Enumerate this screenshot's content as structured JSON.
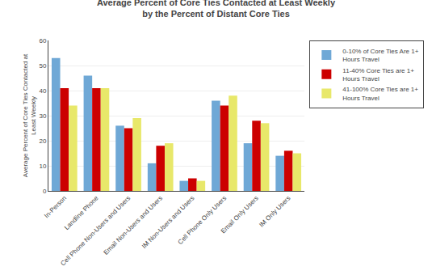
{
  "chart_data": {
    "type": "bar",
    "title": "Average Percent of Core Ties Contacted at Least Weekly\nby the Percent of Distant Core Ties",
    "y_label": "Average Percent of Core Ties Contacted at\nLeast Weekly",
    "categories": [
      "In-Person",
      "Landline Phone",
      "Cell Phone Non-Users and Users",
      "Email Non-Users and Users",
      "IM Non-Users and Users",
      "Cell Phone Only Users",
      "Email Only Users",
      "IM Only Users"
    ],
    "series": [
      {
        "name": "0-10% of Core Ties Are 1+\nHours Travel",
        "color": "#6FA8D6",
        "values": [
          53,
          46,
          26,
          11,
          4,
          36,
          19,
          14
        ]
      },
      {
        "name": "11-40% Core Ties are 1+\nHours Travel",
        "color": "#CC0000",
        "values": [
          41,
          41,
          25,
          18,
          5,
          34,
          28,
          16
        ]
      },
      {
        "name": "41-100% Core Ties are 1+\nHours Travel",
        "color": "#E8E86A",
        "values": [
          34,
          41,
          29,
          19,
          4,
          38,
          27,
          15
        ]
      }
    ],
    "ylim": [
      0,
      60
    ],
    "yticks": [
      0,
      10,
      20,
      30,
      40,
      50,
      60
    ],
    "grid": true,
    "legend": "right"
  }
}
